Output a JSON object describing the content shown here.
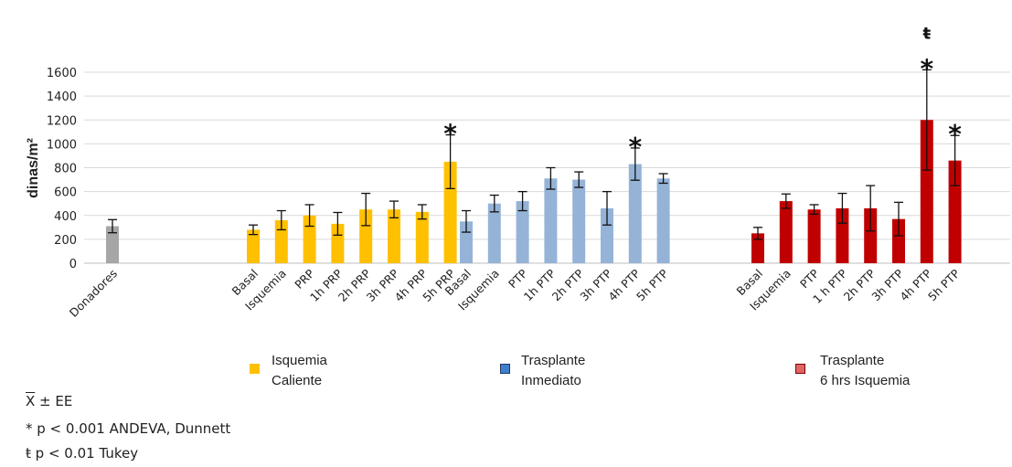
{
  "chart_data": {
    "type": "bar",
    "ylabel": "dinas/m²",
    "ylim": [
      0,
      1600
    ],
    "yticks": [
      0,
      200,
      400,
      600,
      800,
      1000,
      1200,
      1400,
      1600
    ],
    "grid": "horizontal",
    "groups": [
      {
        "name": "",
        "color": "#A6A6A6",
        "categories": [
          "Donadores"
        ],
        "values": [
          310
        ],
        "errors": [
          55
        ],
        "markers": [
          ""
        ]
      },
      {
        "name": "Isquemia Caliente",
        "color": "#FFC000",
        "categories": [
          "Basal",
          "Isquemia",
          "PRP",
          "1h PRP",
          "2h PRP",
          "3h PRP",
          "4h PRP",
          "5h PRP"
        ],
        "values": [
          280,
          360,
          400,
          330,
          450,
          450,
          430,
          850
        ],
        "errors": [
          40,
          80,
          90,
          95,
          135,
          70,
          60,
          225
        ],
        "markers": [
          "",
          "",
          "",
          "",
          "",
          "",
          "",
          "*"
        ]
      },
      {
        "name": "Trasplante Inmediato",
        "color": "#95B3D7",
        "categories": [
          "Basal",
          "Isquemia",
          "PTP",
          "1h PTP",
          "2h PTP",
          "3h PTP",
          "4h PTP",
          "5h PTP"
        ],
        "values": [
          350,
          500,
          520,
          710,
          700,
          460,
          830,
          710
        ],
        "errors": [
          90,
          70,
          80,
          90,
          65,
          140,
          135,
          40
        ],
        "markers": [
          "",
          "",
          "",
          "",
          "",
          "",
          "*",
          ""
        ]
      },
      {
        "name": "Trasplante 6 hrs Isquemia",
        "color": "#C00000",
        "categories": [
          "Basal",
          "Isquemia",
          "PTP",
          "1 h PTP",
          "2h PTP",
          "3h PTP",
          "4h PTP",
          "5h PTP"
        ],
        "values": [
          250,
          520,
          450,
          460,
          460,
          370,
          1200,
          860
        ],
        "errors": [
          50,
          60,
          40,
          125,
          190,
          140,
          420,
          210
        ],
        "markers": [
          "",
          "",
          "",
          "",
          "",
          "",
          "ŧ*",
          "*"
        ]
      }
    ]
  },
  "legend": {
    "items": [
      {
        "line1": "Isquemia",
        "line2": "Caliente",
        "fill": "#FFC000",
        "border": "#FFC000"
      },
      {
        "line1": "Trasplante",
        "line2": "Inmediato",
        "fill": "#3F7FCB",
        "border": "#1F3864"
      },
      {
        "line1": "Trasplante",
        "line2": "6 hrs Isquemia",
        "fill": "#E06666",
        "border": "#7F0000"
      }
    ]
  },
  "footnotes": {
    "mean_symbol": "X",
    "mean_text": " ± EE",
    "star_symbol": "*",
    "star_text": " p < 0.001 ANDEVA, Dunnett",
    "tukey_symbol": "ŧ",
    "tukey_text": " p < 0.01 Tukey"
  }
}
